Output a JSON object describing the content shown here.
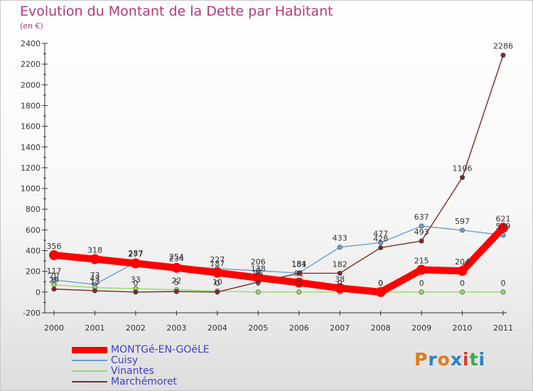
{
  "title": "Evolution du Montant de la Dette par Habitant",
  "subtitle": "(en €)",
  "logo": {
    "text": "Proxiti",
    "colors": [
      "#e07b1a",
      "#2f7fc1",
      "#e07b1a",
      "#2f7fc1",
      "#d23d2e",
      "#3fa84a",
      "#2f7fc1"
    ]
  },
  "chart_data": {
    "type": "line",
    "x": [
      "2000",
      "2001",
      "2002",
      "2003",
      "2004",
      "2005",
      "2006",
      "2007",
      "2008",
      "2009",
      "2010",
      "2011"
    ],
    "ylim": [
      -200,
      2400
    ],
    "yticks": [
      -200,
      0,
      200,
      400,
      600,
      800,
      1000,
      1200,
      1400,
      1600,
      1800,
      2000,
      2200,
      2400
    ],
    "grid": false,
    "legend_position": "bottom-left",
    "series": [
      {
        "name": "MONTGé-EN-GOëLE",
        "color": "#ff0000",
        "values": [
          356,
          318,
          277,
          234,
          187,
          138,
          91,
          38,
          0,
          215,
          204,
          621
        ]
      },
      {
        "name": "Cuisy",
        "color": "#6b9fd0",
        "values": [
          117,
          73,
          287,
          254,
          227,
          206,
          184,
          433,
          477,
          637,
          597,
          549
        ]
      },
      {
        "name": "Vinantes",
        "color": "#99d96a",
        "values": [
          70,
          43,
          33,
          22,
          10,
          0,
          0,
          0,
          0,
          0,
          0,
          0
        ]
      },
      {
        "name": "Marchémoret",
        "color": "#7a2a2a",
        "values": [
          29,
          13,
          0,
          5,
          0,
          96,
          181,
          182,
          428,
          493,
          1106,
          2286
        ]
      }
    ]
  }
}
